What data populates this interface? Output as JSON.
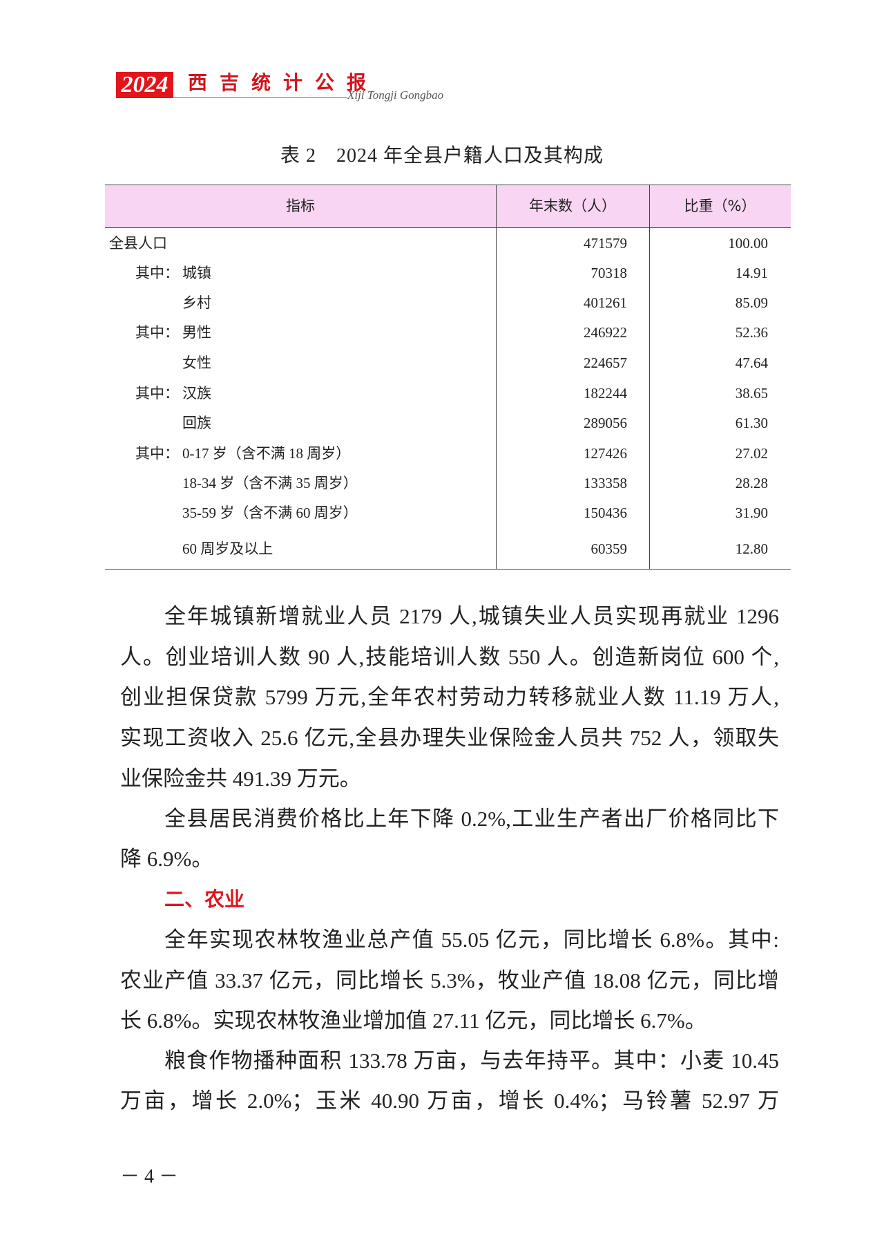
{
  "header": {
    "year": "2024",
    "title": "西吉统计公报",
    "subtitle": "Xiji Tongji Gongbao",
    "brand_color": "#e4141b"
  },
  "table": {
    "title": "表 2　2024 年全县户籍人口及其构成",
    "header_bg": "#f8d6f3",
    "columns": [
      "指标",
      "年末数（人）",
      "比重（%）"
    ],
    "rows": [
      {
        "prefix": "",
        "label": "全县人口",
        "count": "471579",
        "share": "100.00"
      },
      {
        "prefix": "其中：",
        "label": "城镇",
        "count": "70318",
        "share": "14.91"
      },
      {
        "prefix": "",
        "label": "乡村",
        "count": "401261",
        "share": "85.09"
      },
      {
        "prefix": "其中：",
        "label": "男性",
        "count": "246922",
        "share": "52.36"
      },
      {
        "prefix": "",
        "label": "女性",
        "count": "224657",
        "share": "47.64"
      },
      {
        "prefix": "其中：",
        "label": "汉族",
        "count": "182244",
        "share": "38.65"
      },
      {
        "prefix": "",
        "label": "回族",
        "count": "289056",
        "share": "61.30"
      },
      {
        "prefix": "其中：",
        "label": "0-17 岁（含不满 18 周岁）",
        "count": "127426",
        "share": "27.02"
      },
      {
        "prefix": "",
        "label": "18-34 岁（含不满 35 周岁）",
        "count": "133358",
        "share": "28.28"
      },
      {
        "prefix": "",
        "label": "35-59 岁（含不满 60 周岁）",
        "count": "150436",
        "share": "31.90"
      },
      {
        "prefix": "",
        "label": "60 周岁及以上",
        "count": "60359",
        "share": "12.80"
      }
    ]
  },
  "body": {
    "lines": [
      "全年城镇新增就业人员 2179 人,城镇失业人员实现再就业 1296",
      "人。创业培训人数 90 人,技能培训人数 550 人。创造新岗位 600 个,",
      "创业担保贷款 5799 万元,全年农村劳动力转移就业人数 11.19 万人,",
      "实现工资收入 25.6 亿元,全县办理失业保险金人员共 752 人，领取失",
      "业保险金共 491.39 万元。",
      "全县居民消费价格比上年下降 0.2%,工业生产者出厂价格同比下",
      "降 6.9%。",
      "二、农业",
      "全年实现农林牧渔业总产值 55.05 亿元，同比增长 6.8%。其中:",
      "农业产值 33.37 亿元，同比增长 5.3%，牧业产值 18.08 亿元，同比增",
      "长 6.8%。实现农林牧渔业增加值 27.11 亿元，同比增长 6.7%。",
      "粮食作物播种面积 133.78 万亩，与去年持平。其中：小麦 10.45",
      "万亩，增长 2.0%；玉米 40.90 万亩，增长 0.4%；马铃薯 52.97 万"
    ],
    "heading_color": "#e0161e"
  },
  "footer": {
    "page_number": "－ 4 －"
  }
}
